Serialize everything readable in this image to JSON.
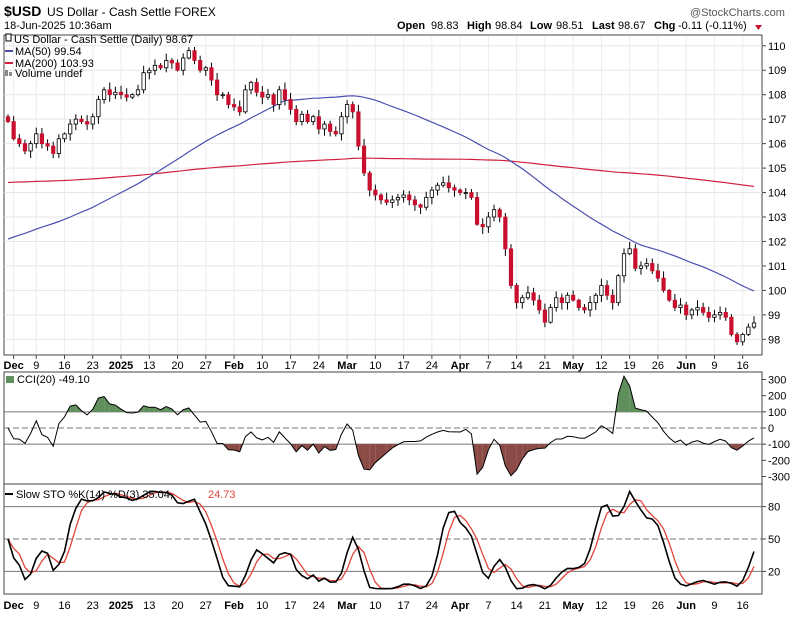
{
  "header": {
    "symbol": "$USD",
    "name": "US Dollar - Cash Settle FOREX",
    "watermark": "@StockCharts.com",
    "timestamp": "18-Jun-2025 10:36am",
    "open_label": "Open",
    "open": "98.83",
    "high_label": "High",
    "high": "98.84",
    "low_label": "Low",
    "low": "98.51",
    "last_label": "Last",
    "last": "98.67",
    "chg_label": "Chg",
    "chg": "-0.11 (-0.11%)"
  },
  "legend": {
    "title": "US Dollar - Cash Settle (Daily) 98.67",
    "ma50": "MA(50) 99.54",
    "ma200": "MA(200) 103.93",
    "volume": "Volume undef"
  },
  "cci_label": "CCI(20) -49.10",
  "sto_label": "Slow STO %K(14) %D(3) 35.04,",
  "sto_label_d": "24.73",
  "colors": {
    "up": "#ffffff",
    "down": "#c8102e",
    "wick": "#000000",
    "ma50": "#4b4fb0",
    "ma200": "#d02040",
    "cci_pos": "#5f8f5a",
    "cci_neg": "#8b4a45",
    "k_line": "#000000",
    "d_line": "#e0453c"
  },
  "chart_data": [
    {
      "type": "candlestick",
      "title": "US Dollar - Cash Settle (Daily) 98.67",
      "ylim": [
        97.4,
        110.4
      ],
      "y_ticks": [
        98,
        99,
        100,
        101,
        102,
        103,
        104,
        105,
        106,
        107,
        108,
        109,
        110
      ],
      "x_tick_labels": [
        "Dec",
        "9",
        "16",
        "23",
        "2025",
        "13",
        "20",
        "27",
        "Feb",
        "10",
        "17",
        "24",
        "Mar",
        "10",
        "17",
        "24",
        "Apr",
        "7",
        "14",
        "21",
        "May",
        "12",
        "19",
        "26",
        "Jun",
        "9",
        "16"
      ],
      "close": [
        106.9,
        106.2,
        106.0,
        105.7,
        106.0,
        106.4,
        106.0,
        105.9,
        105.6,
        106.2,
        106.4,
        106.8,
        107.0,
        106.9,
        106.8,
        107.1,
        107.8,
        108.2,
        108.0,
        108.1,
        108.0,
        107.9,
        108.0,
        108.2,
        108.9,
        109.0,
        109.2,
        109.1,
        109.4,
        109.3,
        109.0,
        109.5,
        109.8,
        109.4,
        109.0,
        109.1,
        108.6,
        108.0,
        108.0,
        107.6,
        107.5,
        107.3,
        108.2,
        108.5,
        108.1,
        107.9,
        108.0,
        107.6,
        108.2,
        107.8,
        107.4,
        106.9,
        107.2,
        106.9,
        107.1,
        106.6,
        106.8,
        106.5,
        106.4,
        107.1,
        107.6,
        107.3,
        105.9,
        104.8,
        104.1,
        103.9,
        103.7,
        103.6,
        103.7,
        103.8,
        103.9,
        103.7,
        103.5,
        103.4,
        103.8,
        104.1,
        104.3,
        104.4,
        104.2,
        104.1,
        104.0,
        104.0,
        103.8,
        102.7,
        102.6,
        103.0,
        103.3,
        103.0,
        101.7,
        100.2,
        99.5,
        99.7,
        99.9,
        99.6,
        99.2,
        98.7,
        99.3,
        99.7,
        99.5,
        99.8,
        99.6,
        99.3,
        99.2,
        99.5,
        99.8,
        100.2,
        99.8,
        99.5,
        100.6,
        101.5,
        101.7,
        100.9,
        101.0,
        101.1,
        100.8,
        100.5,
        100.0,
        99.6,
        99.3,
        99.4,
        99.0,
        99.2,
        99.3,
        99.1,
        98.9,
        99.0,
        99.1,
        98.9,
        98.2,
        97.9,
        98.2,
        98.5,
        98.67
      ],
      "series": [
        {
          "name": "MA(50) 99.54"
        },
        {
          "name": "MA(200) 103.93"
        }
      ]
    },
    {
      "type": "area",
      "title": "CCI(20) -49.10",
      "ylim": [
        -340,
        340
      ],
      "y_ticks": [
        300,
        200,
        100,
        0,
        -100,
        -200,
        -300
      ],
      "reference_lines": [
        100,
        0,
        -100
      ]
    },
    {
      "type": "line",
      "title": "Slow STO %K(14) %D(3) 35.04, 24.73",
      "ylim": [
        0,
        100
      ],
      "y_ticks": [
        80,
        50,
        20
      ],
      "reference_lines": [
        80,
        50,
        20
      ]
    }
  ]
}
